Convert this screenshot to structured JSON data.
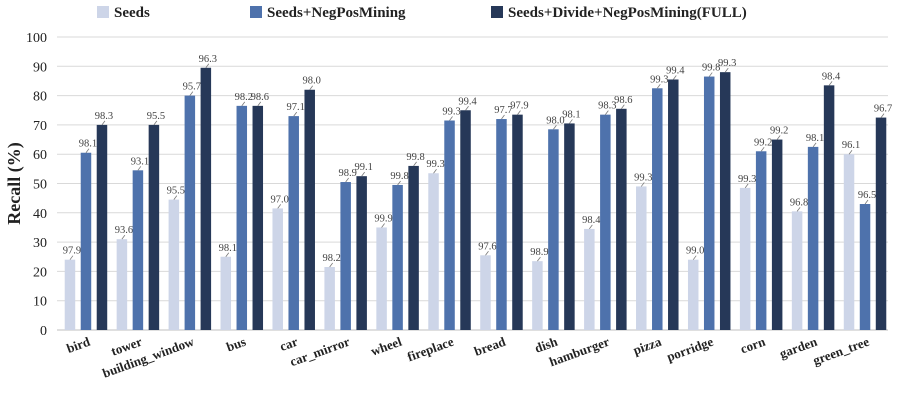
{
  "chart_data": {
    "type": "bar",
    "ylabel": "Recall (%)",
    "xlabel": "",
    "ylim": [
      0,
      100
    ],
    "yticks": [
      0,
      10,
      20,
      30,
      40,
      50,
      60,
      70,
      80,
      90,
      100
    ],
    "grid": true,
    "legend_position": "top",
    "categories": [
      "bird",
      "tower",
      "building_window",
      "bus",
      "car",
      "car_mirror",
      "wheel",
      "fireplace",
      "bread",
      "dish",
      "hamburger",
      "pizza",
      "porridge",
      "corn",
      "garden",
      "green_tree"
    ],
    "series": [
      {
        "name": "Seeds",
        "color": "#cdd5e8",
        "values": [
          24,
          31,
          44.5,
          25,
          41.5,
          21.5,
          35,
          53.5,
          25.5,
          23.5,
          34.5,
          49,
          24,
          48.5,
          40.5,
          60
        ],
        "labels": [
          "97.9",
          "93.6",
          "95.5",
          "98.1",
          "97.0",
          "98.2",
          "99.9",
          "99.3",
          "97.6",
          "98.9",
          "98.4",
          "99.3",
          "99.0",
          "99.3",
          "96.8",
          "96.1"
        ]
      },
      {
        "name": "Seeds+NegPosMining",
        "color": "#4e72ac",
        "values": [
          60.5,
          54.5,
          80,
          76.5,
          73,
          50.5,
          49.5,
          71.5,
          72,
          68.5,
          73.5,
          82.5,
          86.5,
          61,
          62.5,
          43
        ],
        "labels": [
          "98.1",
          "93.1",
          "95.7",
          "98.2",
          "97.1",
          "98.9",
          "99.8",
          "99.3",
          "97.7",
          "98.0",
          "98.3",
          "99.3",
          "99.8",
          "99.2",
          "98.1",
          "96.5"
        ]
      },
      {
        "name": "Seeds+Divide+NegPosMining(FULL)",
        "color": "#263858",
        "values": [
          70,
          70,
          89.5,
          76.5,
          82,
          52.5,
          56,
          75,
          73.5,
          70.5,
          75.5,
          85.5,
          88,
          65,
          83.5,
          72.5
        ],
        "labels": [
          "98.3",
          "95.5",
          "96.3",
          "98.6",
          "98.0",
          "99.1",
          "99.8",
          "99.4",
          "97.9",
          "98.1",
          "98.6",
          "99.4",
          "99.3",
          "99.2",
          "98.4",
          "96.7"
        ]
      }
    ]
  }
}
